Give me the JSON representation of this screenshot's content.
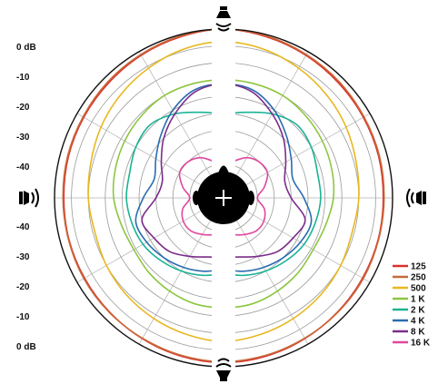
{
  "chart_data": {
    "type": "polar",
    "title": "",
    "radial_axis": {
      "unit": "dB",
      "tick_labels_upper": [
        "0 dB",
        "-10",
        "-20",
        "-30",
        "-40"
      ],
      "tick_labels_lower": [
        "-40",
        "-30",
        "-20",
        "-10",
        "0 dB"
      ],
      "range": [
        -40,
        0
      ],
      "rings": 9
    },
    "angular_axis": {
      "zero": "top",
      "direction": "clockwise",
      "spokes_every_deg": 30
    },
    "split_at_center": true,
    "center_marker": "listener-head-icon",
    "direction_icons": [
      "speaker-top-icon",
      "speaker-left-icon",
      "speaker-right-icon",
      "speaker-bottom-icon"
    ],
    "legend_position": "bottom-right",
    "angles_deg": [
      0,
      15,
      30,
      45,
      60,
      75,
      90,
      105,
      120,
      135,
      150,
      165,
      180
    ],
    "series": [
      {
        "name": "125",
        "color": "#d9312b",
        "values": [
          0,
          -0.5,
          -1,
          -1.5,
          -1.8,
          -2,
          -2.2,
          -2.1,
          -2,
          -1.8,
          -1.5,
          -1.2,
          -1
        ]
      },
      {
        "name": "250",
        "color": "#c8693a",
        "values": [
          0,
          -0.3,
          -0.8,
          -1.2,
          -1.6,
          -1.8,
          -2,
          -2,
          -1.8,
          -1.7,
          -1.6,
          -1.4,
          -1.2
        ]
      },
      {
        "name": "500",
        "color": "#e8b820",
        "values": [
          -3,
          -3.5,
          -4.5,
          -5.5,
          -6.5,
          -7.5,
          -8,
          -8.5,
          -8,
          -7.5,
          -7,
          -6.5,
          -6
        ]
      },
      {
        "name": "1 K",
        "color": "#8cc63f",
        "values": [
          -12,
          -12,
          -12,
          -12.5,
          -13,
          -13.5,
          -14,
          -15,
          -15.5,
          -15,
          -14.5,
          -14,
          -14
        ]
      },
      {
        "name": "2 K",
        "color": "#1ab394",
        "values": [
          -20,
          -19,
          -17,
          -15.5,
          -16,
          -17,
          -17,
          -17.5,
          -18,
          -19,
          -20,
          -21,
          -22
        ]
      },
      {
        "name": "4 K",
        "color": "#2b6cb0",
        "values": [
          -13,
          -13.5,
          -16,
          -19,
          -21.5,
          -23,
          -21,
          -18.5,
          -19,
          -20,
          -21,
          -22,
          -23
        ]
      },
      {
        "name": "8 K",
        "color": "#7b2d8b",
        "values": [
          -13,
          -14,
          -17,
          -20,
          -23,
          -25,
          -24,
          -20,
          -21,
          -22,
          -24,
          -25.5,
          -26
        ]
      },
      {
        "name": "16 K",
        "color": "#e0479e",
        "values": [
          -32,
          -31,
          -29,
          -28,
          -28,
          -30,
          -32,
          -30,
          -29,
          -29,
          -30,
          -31,
          -32
        ]
      }
    ]
  }
}
